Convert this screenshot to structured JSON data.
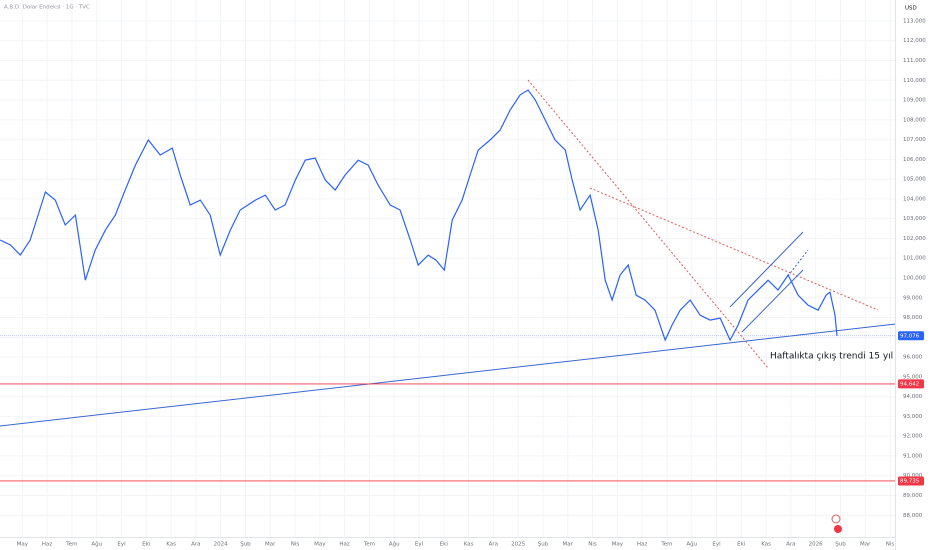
{
  "chart_data": {
    "type": "line",
    "title": "A.B.D. Dolar Endeksi · 1G · TVC",
    "y_axis_label": "USD",
    "annotation": "Haftalıkta çıkış trendi 15 yıl",
    "color": "#2962ff",
    "grid": true,
    "x": [
      3.11,
      3.52,
      3.92,
      4.32,
      4.93,
      5.33,
      5.73,
      6.14,
      6.54,
      6.94,
      7.35,
      7.75,
      8.15,
      8.56,
      9.08,
      9.56,
      10.05,
      10.37,
      10.77,
      11.18,
      11.58,
      11.98,
      12.39,
      12.79,
      13.4,
      13.8,
      14.2,
      14.6,
      15.01,
      15.41,
      15.81,
      16.22,
      16.62,
      17.02,
      17.55,
      17.95,
      18.35,
      18.84,
      19.24,
      19.65,
      19.97,
      20.37,
      20.69,
      21.02,
      21.34,
      21.74,
      22.06,
      22.39,
      22.87,
      23.27,
      23.68,
      24.08,
      24.4,
      24.69,
      25.09,
      25.49,
      25.9,
      26.18,
      26.5,
      26.9,
      27.23,
      27.51,
      27.79,
      28.11,
      28.44,
      28.76,
      29.12,
      29.52,
      29.93,
      30.21,
      30.53,
      30.94,
      31.34,
      31.74,
      32.15,
      32.55,
      32.87,
      33.27,
      33.68,
      34.08,
      34.48,
      34.89,
      35.29,
      35.69,
      36.1,
      36.42,
      36.58,
      36.78,
      36.86
    ],
    "values": [
      101920,
      101670,
      101160,
      101920,
      104350,
      103940,
      102680,
      103180,
      99890,
      101410,
      102420,
      103180,
      104450,
      105710,
      106980,
      106220,
      106570,
      105210,
      103690,
      103940,
      103180,
      101160,
      102420,
      103440,
      103940,
      104190,
      103440,
      103690,
      104950,
      105960,
      106070,
      104950,
      104450,
      105210,
      105960,
      105710,
      104700,
      103690,
      103440,
      101920,
      100650,
      101160,
      100900,
      100400,
      102930,
      103940,
      105210,
      106470,
      106980,
      107480,
      108500,
      109260,
      109510,
      109000,
      107990,
      106980,
      106470,
      104950,
      103440,
      104190,
      102420,
      99890,
      98880,
      100150,
      100650,
      99130,
      98880,
      98370,
      96860,
      97620,
      98370,
      98880,
      98120,
      97870,
      97970,
      96860,
      97620,
      98880,
      99390,
      99890,
      99390,
      100150,
      99130,
      98630,
      98370,
      99130,
      99280,
      98120,
      97076
    ],
    "xlim": [
      3.1,
      39.2
    ],
    "xticks": [
      {
        "value": 4,
        "label": "May"
      },
      {
        "value": 5,
        "label": "Haz"
      },
      {
        "value": 6,
        "label": "Tem"
      },
      {
        "value": 7,
        "label": "Ağu"
      },
      {
        "value": 8,
        "label": "Eyl"
      },
      {
        "value": 9,
        "label": "Eki"
      },
      {
        "value": 10,
        "label": "Kas"
      },
      {
        "value": 11,
        "label": "Ara"
      },
      {
        "value": 12,
        "label": "2024"
      },
      {
        "value": 13,
        "label": "Şub"
      },
      {
        "value": 14,
        "label": "Mar"
      },
      {
        "value": 15,
        "label": "Nis"
      },
      {
        "value": 16,
        "label": "May"
      },
      {
        "value": 17,
        "label": "Haz"
      },
      {
        "value": 18,
        "label": "Tem"
      },
      {
        "value": 19,
        "label": "Ağu"
      },
      {
        "value": 20,
        "label": "Eyl"
      },
      {
        "value": 21,
        "label": "Eki"
      },
      {
        "value": 22,
        "label": "Kas"
      },
      {
        "value": 23,
        "label": "Ara"
      },
      {
        "value": 24,
        "label": "2025"
      },
      {
        "value": 25,
        "label": "Şub"
      },
      {
        "value": 26,
        "label": "Mar"
      },
      {
        "value": 27,
        "label": "Nis"
      },
      {
        "value": 28,
        "label": "May"
      },
      {
        "value": 29,
        "label": "Haz"
      },
      {
        "value": 30,
        "label": "Tem"
      },
      {
        "value": 31,
        "label": "Ağu"
      },
      {
        "value": 32,
        "label": "Eyl"
      },
      {
        "value": 33,
        "label": "Eki"
      },
      {
        "value": 34,
        "label": "Kas"
      },
      {
        "value": 35,
        "label": "Ara"
      },
      {
        "value": 36,
        "label": "2026"
      },
      {
        "value": 37,
        "label": "Şub"
      },
      {
        "value": 38,
        "label": "Mar"
      },
      {
        "value": 39,
        "label": "Nis"
      }
    ],
    "ylim": [
      86900,
      114060
    ],
    "yticks": [
      {
        "value": 88000,
        "label": "88,000"
      },
      {
        "value": 89000,
        "label": "89,000"
      },
      {
        "value": 90000,
        "label": "90,000"
      },
      {
        "value": 91000,
        "label": "91,000"
      },
      {
        "value": 92000,
        "label": "92,000"
      },
      {
        "value": 93000,
        "label": "93,000"
      },
      {
        "value": 94000,
        "label": "94,000"
      },
      {
        "value": 95000,
        "label": "95,000"
      },
      {
        "value": 96000,
        "label": "96,000"
      },
      {
        "value": 97000,
        "label": "97,000"
      },
      {
        "value": 98000,
        "label": "98,000"
      },
      {
        "value": 99000,
        "label": "99,000"
      },
      {
        "value": 100000,
        "label": "100,000"
      },
      {
        "value": 101000,
        "label": "101,000"
      },
      {
        "value": 102000,
        "label": "102,000"
      },
      {
        "value": 103000,
        "label": "103,000"
      },
      {
        "value": 104000,
        "label": "104,000"
      },
      {
        "value": 105000,
        "label": "105,000"
      },
      {
        "value": 106000,
        "label": "106,000"
      },
      {
        "value": 107000,
        "label": "107,000"
      },
      {
        "value": 108000,
        "label": "108,000"
      },
      {
        "value": 109000,
        "label": "109,000"
      },
      {
        "value": 110000,
        "label": "110,000"
      },
      {
        "value": 111000,
        "label": "111,000"
      },
      {
        "value": 112000,
        "label": "112,000"
      },
      {
        "value": 113000,
        "label": "113,000"
      }
    ],
    "last_price": {
      "value": 97076,
      "label": "97,076"
    },
    "levels": [
      {
        "value": 94642,
        "label": "94,642"
      },
      {
        "value": 89735,
        "label": "89,735"
      }
    ],
    "level_color": "#f23645"
  }
}
